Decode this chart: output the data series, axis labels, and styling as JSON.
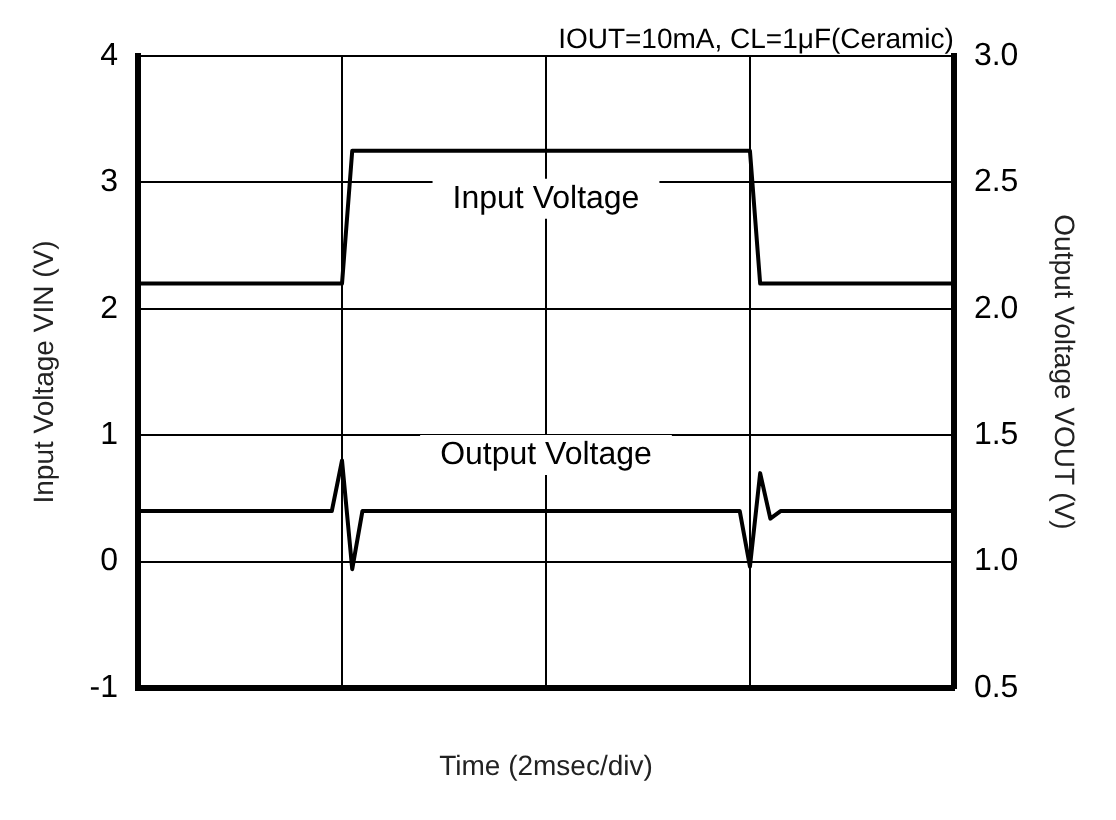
{
  "chart_data": {
    "type": "line",
    "xlabel": "Time (2msec/div)",
    "ylabel": "Input Voltage VIN (V)",
    "y2label": "Output Voltage VOUT (V)",
    "annotations": [
      "IOUT=10mA, CL=1μF(Ceramic)"
    ],
    "categories": [
      null,
      null,
      null,
      null,
      null,
      null,
      null,
      null,
      null,
      null,
      null,
      null,
      null,
      null,
      null,
      null,
      null,
      null,
      null,
      null,
      null,
      null,
      null,
      null,
      null,
      null,
      null,
      null,
      null,
      null,
      null,
      null,
      null,
      null,
      null,
      null,
      null,
      null,
      null,
      null,
      null,
      null,
      null,
      null,
      null,
      null,
      null,
      null,
      null,
      null,
      null,
      null,
      null,
      null,
      null,
      null,
      null,
      null,
      null,
      null,
      null,
      null,
      null,
      null,
      null,
      null,
      null,
      null,
      null,
      null,
      null,
      null,
      null,
      null,
      null,
      null,
      null,
      null,
      null,
      null,
      null
    ],
    "ylim": [
      -1,
      4
    ],
    "yticks": [
      -1,
      0,
      1,
      2,
      3,
      4
    ],
    "y2lim": [
      0.5,
      3.0
    ],
    "y2ticks": [
      {
        "value": 0.5,
        "label": "0.5"
      },
      {
        "value": 1.0,
        "label": "1.0"
      },
      {
        "value": 1.5,
        "label": "1.5"
      },
      {
        "value": 2.0,
        "label": "2.0"
      },
      {
        "value": 2.5,
        "label": "2.5"
      },
      {
        "value": 3.0,
        "label": "3.0"
      }
    ],
    "grid": true,
    "marker": "none",
    "line_style": "solid",
    "series": [
      {
        "name": "Input Voltage",
        "color": "#000000",
        "values": [
          2.2,
          2.2,
          2.2,
          2.2,
          2.2,
          2.2,
          2.2,
          2.2,
          2.2,
          2.2,
          2.2,
          2.2,
          2.2,
          2.2,
          2.2,
          2.2,
          2.2,
          2.2,
          2.2,
          2.2,
          2.2,
          3.25,
          3.25,
          3.25,
          3.25,
          3.25,
          3.25,
          3.25,
          3.25,
          3.25,
          3.25,
          3.25,
          3.25,
          3.25,
          3.25,
          3.25,
          3.25,
          3.25,
          3.25,
          3.25,
          3.25,
          3.25,
          3.25,
          3.25,
          3.25,
          3.25,
          3.25,
          3.25,
          3.25,
          3.25,
          3.25,
          3.25,
          3.25,
          3.25,
          3.25,
          3.25,
          3.25,
          3.25,
          3.25,
          3.25,
          3.25,
          2.2,
          2.2,
          2.2,
          2.2,
          2.2,
          2.2,
          2.2,
          2.2,
          2.2,
          2.2,
          2.2,
          2.2,
          2.2,
          2.2,
          2.2,
          2.2,
          2.2,
          2.2,
          2.2,
          2.2
        ]
      },
      {
        "name": "Output Voltage",
        "color": "#000000",
        "axis": "y2",
        "values": [
          1.2,
          1.2,
          1.2,
          1.2,
          1.2,
          1.2,
          1.2,
          1.2,
          1.2,
          1.2,
          1.2,
          1.2,
          1.2,
          1.2,
          1.2,
          1.2,
          1.2,
          1.2,
          1.2,
          1.2,
          1.4,
          0.97,
          1.2,
          1.2,
          1.2,
          1.2,
          1.2,
          1.2,
          1.2,
          1.2,
          1.2,
          1.2,
          1.2,
          1.2,
          1.2,
          1.2,
          1.2,
          1.2,
          1.2,
          1.2,
          1.2,
          1.2,
          1.2,
          1.2,
          1.2,
          1.2,
          1.2,
          1.2,
          1.2,
          1.2,
          1.2,
          1.2,
          1.2,
          1.2,
          1.2,
          1.2,
          1.2,
          1.2,
          1.2,
          1.2,
          0.98,
          1.35,
          1.17,
          1.2,
          1.2,
          1.2,
          1.2,
          1.2,
          1.2,
          1.2,
          1.2,
          1.2,
          1.2,
          1.2,
          1.2,
          1.2,
          1.2,
          1.2,
          1.2,
          1.2,
          1.2
        ]
      }
    ]
  }
}
